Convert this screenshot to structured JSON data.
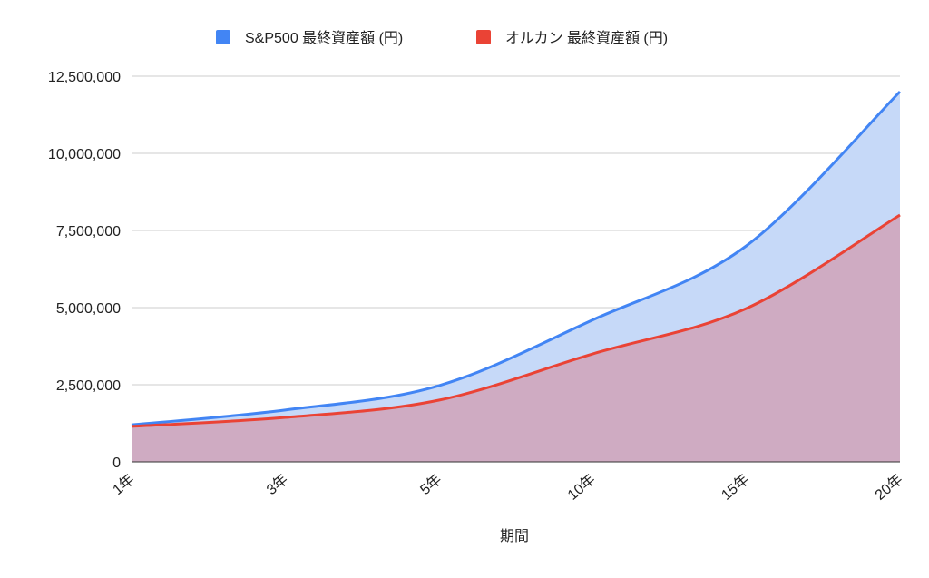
{
  "chart_data": {
    "type": "area",
    "categories": [
      "1年",
      "3年",
      "5年",
      "10年",
      "15年",
      "20年"
    ],
    "series": [
      {
        "name": "S&P500 最終資産額 (円)",
        "color": "#4285f4",
        "fill": "#c6d9f8",
        "values": [
          1200000,
          1680000,
          2470000,
          4600000,
          7000000,
          12000000
        ]
      },
      {
        "name": "オルカン 最終資産額 (円)",
        "color": "#ea4335",
        "fill": "#d0a9bf",
        "values": [
          1150000,
          1440000,
          2000000,
          3500000,
          4970000,
          8000000
        ]
      }
    ],
    "xlabel": "期間",
    "ylabel": "",
    "ylim": [
      0,
      12500000
    ],
    "yticks": [
      0,
      2500000,
      5000000,
      7500000,
      10000000,
      12500000
    ],
    "ytick_labels": [
      "0",
      "2,500,000",
      "5,000,000",
      "7,500,000",
      "10,000,000",
      "12,500,000"
    ],
    "grid": true,
    "legend": "top-center"
  }
}
